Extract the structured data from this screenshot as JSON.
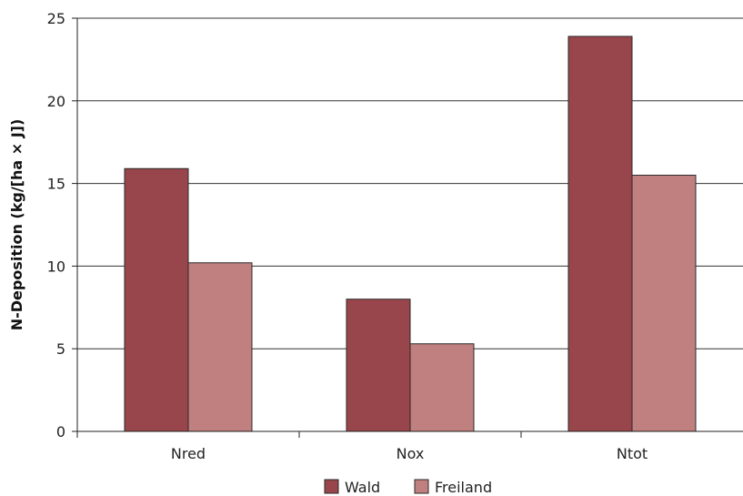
{
  "chart_data": {
    "type": "bar",
    "categories": [
      "Nred",
      "Nox",
      "Ntot"
    ],
    "series": [
      {
        "name": "Wald",
        "values": [
          15.9,
          8.0,
          23.9
        ],
        "color": "#98464b"
      },
      {
        "name": "Freiland",
        "values": [
          10.2,
          5.3,
          15.5
        ],
        "color": "#c0807f"
      }
    ],
    "xlabel": "",
    "ylabel": "N-Deposition (kg/[ha × J])",
    "ylim": [
      0,
      25
    ],
    "yticks": [
      0,
      5,
      10,
      15,
      20,
      25
    ],
    "grid": true,
    "legend_position": "bottom"
  }
}
